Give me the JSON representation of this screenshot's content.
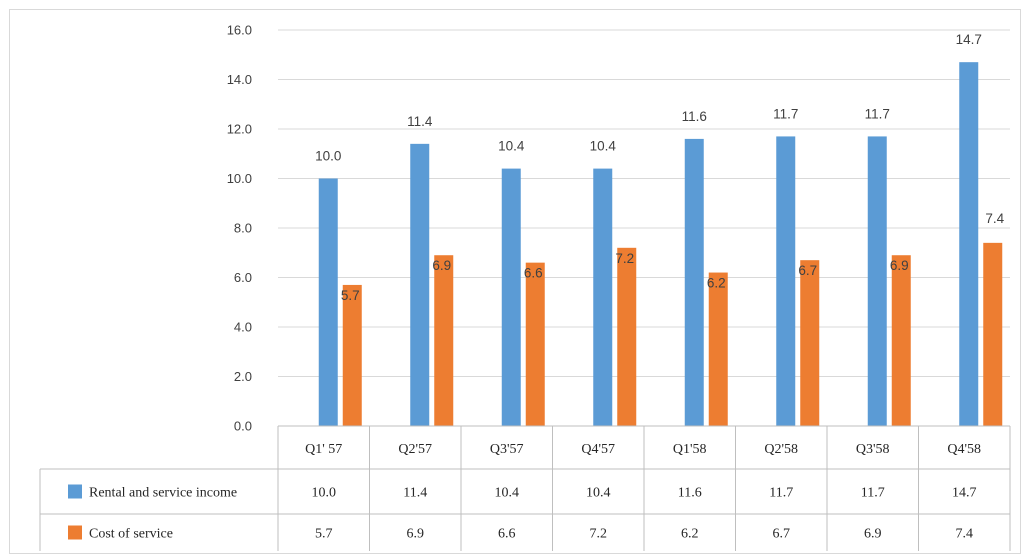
{
  "chart_data": {
    "type": "bar",
    "title": "",
    "xlabel": "",
    "ylabel": "",
    "categories": [
      "Q1' 57",
      "Q2'57",
      "Q3'57",
      "Q4'57",
      "Q1'58",
      "Q2'58",
      "Q3'58",
      "Q4'58"
    ],
    "series": [
      {
        "name": "Rental and service income",
        "color": "#5b9bd5",
        "values": [
          10.0,
          11.4,
          10.4,
          10.4,
          11.6,
          11.7,
          11.7,
          14.7
        ],
        "labels": [
          "10.0",
          "11.4",
          "10.4",
          "10.4",
          "11.6",
          "11.7",
          "11.7",
          "14.7"
        ]
      },
      {
        "name": "Cost of service",
        "color": "#ed7d31",
        "values": [
          5.7,
          6.9,
          6.6,
          7.2,
          6.2,
          6.7,
          6.9,
          7.4
        ],
        "labels": [
          "5.7",
          "6.9",
          "6.6",
          "7.2",
          "6.2",
          "6.7",
          "6.9",
          "7.4"
        ]
      }
    ],
    "ylim": [
      0,
      16
    ],
    "yticks": [
      "0.0",
      "2.0",
      "4.0",
      "6.0",
      "8.0",
      "10.0",
      "12.0",
      "14.0",
      "16.0"
    ],
    "grid": true,
    "legend": "data-table"
  }
}
